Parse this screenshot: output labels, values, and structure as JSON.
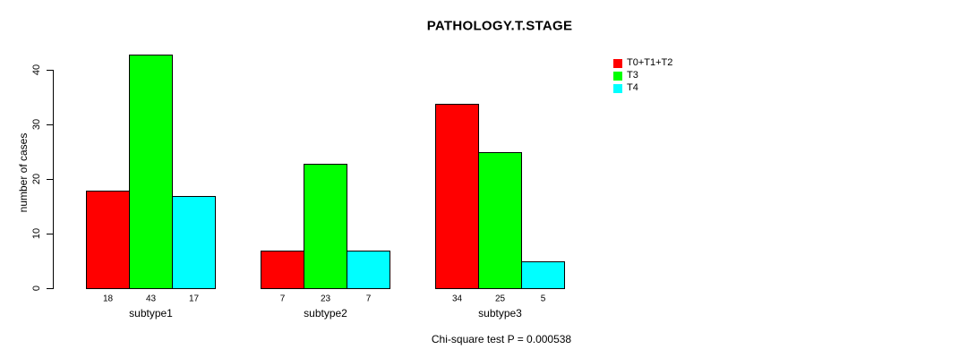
{
  "chart_data": {
    "type": "bar",
    "title": "PATHOLOGY.T.STAGE",
    "categories": [
      "subtype1",
      "subtype2",
      "subtype3"
    ],
    "series": [
      {
        "name": "T0+T1+T2",
        "color": "#ff0000",
        "values": [
          18,
          7,
          34
        ]
      },
      {
        "name": "T3",
        "color": "#00ff00",
        "values": [
          43,
          23,
          25
        ]
      },
      {
        "name": "T4",
        "color": "#00ffff",
        "values": [
          17,
          7,
          5
        ]
      }
    ],
    "bar_value_labels": [
      [
        18,
        43,
        17
      ],
      [
        7,
        23,
        7
      ],
      [
        34,
        25,
        5
      ]
    ],
    "xlabel": "",
    "ylabel": "number of cases",
    "yticks": [
      0,
      10,
      20,
      30,
      40
    ],
    "ylim": [
      0,
      44
    ],
    "grid": false,
    "legend_position": "top-right",
    "annotation": "Chi-square test P = 0.000538"
  },
  "colors": {
    "background": "#ffffff",
    "text": "#000000",
    "axis": "#000000"
  }
}
